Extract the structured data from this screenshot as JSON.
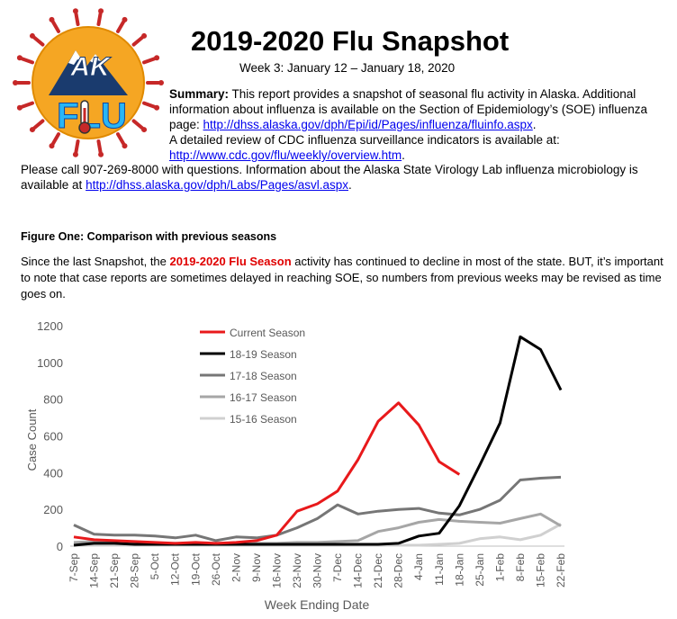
{
  "header": {
    "title": "2019-2020 Flu Snapshot",
    "subtitle": "Week 3: January 12 – January 18, 2020"
  },
  "logo": {
    "state_text": "AK",
    "flu_text": "FLU",
    "sun_color": "#f5a623",
    "ray_color": "#c62828",
    "letter_color": "#29b6f6"
  },
  "summary": {
    "label": "Summary:",
    "text1": " This report provides a snapshot of seasonal flu activity in Alaska. Additional information about influenza is available on the Section of Epidemiology’s (SOE) influenza page: ",
    "link1": "http://dhss.alaska.gov/dph/Epi/id/Pages/influenza/fluinfo.aspx",
    "text2": ".",
    "text3": "A detailed review of CDC influenza surveillance indicators is available at:",
    "link2": "http://www.cdc.gov/flu/weekly/overview.htm",
    "text4": "."
  },
  "contact": {
    "text1": "Please call 907-269-8000 with questions. Information about the Alaska State Virology Lab influenza microbiology is available at ",
    "link": "http://dhss.alaska.gov/dph/Labs/Pages/asvl.aspx",
    "text2": "."
  },
  "figure": {
    "title": "Figure One: Comparison with previous seasons",
    "text_before": "Since the last Snapshot, the ",
    "highlight": "2019-2020 Flu Season",
    "text_after": " activity has continued to decline in most of the state.  BUT, it’s important to note that case reports are sometimes delayed in reaching SOE, so numbers from previous weeks may be revised as time goes on."
  },
  "chart_data": {
    "type": "line",
    "xlabel": "Week Ending Date",
    "ylabel": "Case Count",
    "ylim": [
      0,
      1200
    ],
    "yticks": [
      0,
      200,
      400,
      600,
      800,
      1000,
      1200
    ],
    "grid": false,
    "legend_position": "top-left",
    "categories": [
      "7-Sep",
      "14-Sep",
      "21-Sep",
      "28-Sep",
      "5-Oct",
      "12-Oct",
      "19-Oct",
      "26-Oct",
      "2-Nov",
      "9-Nov",
      "16-Nov",
      "23-Nov",
      "30-Nov",
      "7-Dec",
      "14-Dec",
      "21-Dec",
      "28-Dec",
      "4-Jan",
      "11-Jan",
      "18-Jan",
      "25-Jan",
      "1-Feb",
      "8-Feb",
      "15-Feb",
      "22-Feb"
    ],
    "series": [
      {
        "name": "Current Season",
        "color": "#e8191b",
        "values": [
          50,
          35,
          30,
          25,
          20,
          15,
          20,
          15,
          20,
          30,
          60,
          190,
          230,
          300,
          470,
          680,
          780,
          660,
          460,
          390,
          null,
          null,
          null,
          null,
          null
        ]
      },
      {
        "name": "18-19 Season",
        "color": "#000000",
        "values": [
          5,
          15,
          15,
          10,
          10,
          10,
          10,
          10,
          10,
          10,
          10,
          10,
          10,
          10,
          10,
          10,
          15,
          55,
          70,
          220,
          440,
          670,
          1140,
          1070,
          850
        ]
      },
      {
        "name": "17-18 Season",
        "color": "#767676",
        "values": [
          115,
          65,
          60,
          60,
          55,
          45,
          60,
          30,
          50,
          45,
          60,
          100,
          150,
          225,
          175,
          190,
          200,
          205,
          180,
          170,
          200,
          250,
          360,
          370,
          375
        ]
      },
      {
        "name": "16-17 Season",
        "color": "#a6a6a6",
        "values": [
          20,
          25,
          20,
          20,
          10,
          15,
          10,
          10,
          10,
          15,
          15,
          20,
          20,
          25,
          30,
          80,
          100,
          130,
          145,
          135,
          130,
          125,
          150,
          175,
          110
        ]
      },
      {
        "name": "15-16 Season",
        "color": "#d0d0d0",
        "values": [
          5,
          5,
          5,
          5,
          5,
          5,
          5,
          5,
          5,
          5,
          5,
          5,
          5,
          5,
          5,
          5,
          5,
          5,
          10,
          15,
          40,
          50,
          35,
          60,
          120
        ]
      }
    ]
  }
}
